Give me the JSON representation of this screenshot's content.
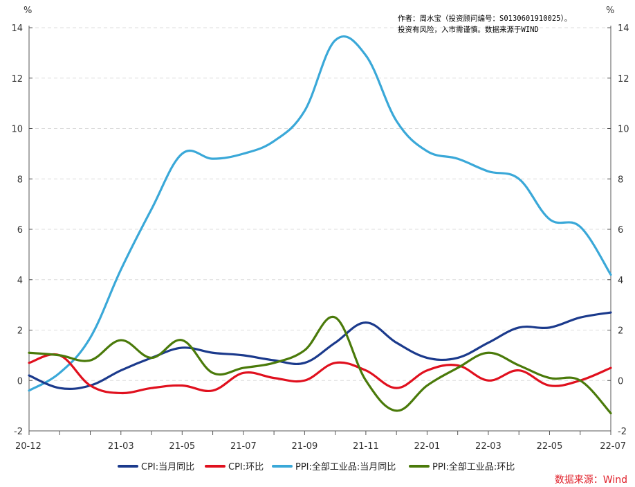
{
  "chart_data": {
    "type": "line",
    "y_unit_left": "%",
    "y_unit_right": "%",
    "ylim": [
      -2,
      14
    ],
    "yticks": [
      -2,
      0,
      2,
      4,
      6,
      8,
      10,
      12,
      14
    ],
    "grid": true,
    "x_tick_labels": [
      "20-12",
      "21-03",
      "21-05",
      "21-07",
      "21-09",
      "21-11",
      "22-01",
      "22-03",
      "22-05",
      "22-07"
    ],
    "x": [
      "20-12",
      "21-01",
      "21-02",
      "21-03",
      "21-04",
      "21-05",
      "21-06",
      "21-07",
      "21-08",
      "21-09",
      "21-10",
      "21-11",
      "21-12",
      "22-01",
      "22-02",
      "22-03",
      "22-04",
      "22-05",
      "22-06",
      "22-07"
    ],
    "series": [
      {
        "name": "CPI:当月同比",
        "color": "#1b3a8c",
        "values": [
          0.2,
          -0.3,
          -0.2,
          0.4,
          0.9,
          1.3,
          1.1,
          1.0,
          0.8,
          0.7,
          1.5,
          2.3,
          1.5,
          0.9,
          0.9,
          1.5,
          2.1,
          2.1,
          2.5,
          2.7
        ]
      },
      {
        "name": "CPI:环比",
        "color": "#e0101e",
        "values": [
          0.7,
          1.0,
          -0.2,
          -0.5,
          -0.3,
          -0.2,
          -0.4,
          0.3,
          0.1,
          0.0,
          0.7,
          0.4,
          -0.3,
          0.4,
          0.6,
          0.0,
          0.4,
          -0.2,
          0.0,
          0.5
        ]
      },
      {
        "name": "PPI:全部工业品:当月同比",
        "color": "#3aa8d8",
        "values": [
          -0.4,
          0.3,
          1.7,
          4.4,
          6.8,
          9.0,
          8.8,
          9.0,
          9.5,
          10.7,
          13.5,
          12.9,
          10.3,
          9.1,
          8.8,
          8.3,
          8.0,
          6.4,
          6.1,
          4.2
        ]
      },
      {
        "name": "PPI:全部工业品:环比",
        "color": "#4a7a0a",
        "values": [
          1.1,
          1.0,
          0.8,
          1.6,
          0.9,
          1.6,
          0.3,
          0.5,
          0.7,
          1.2,
          2.5,
          0.0,
          -1.2,
          -0.2,
          0.5,
          1.1,
          0.6,
          0.1,
          0.0,
          -1.3
        ]
      }
    ]
  },
  "note": {
    "line1": "作者：周水宝（投资顾问编号：S0130601910025）。",
    "line2": "投资有风险，入市需谨慎。数据来源于WIND"
  },
  "source_label": "数据来源：Wind"
}
